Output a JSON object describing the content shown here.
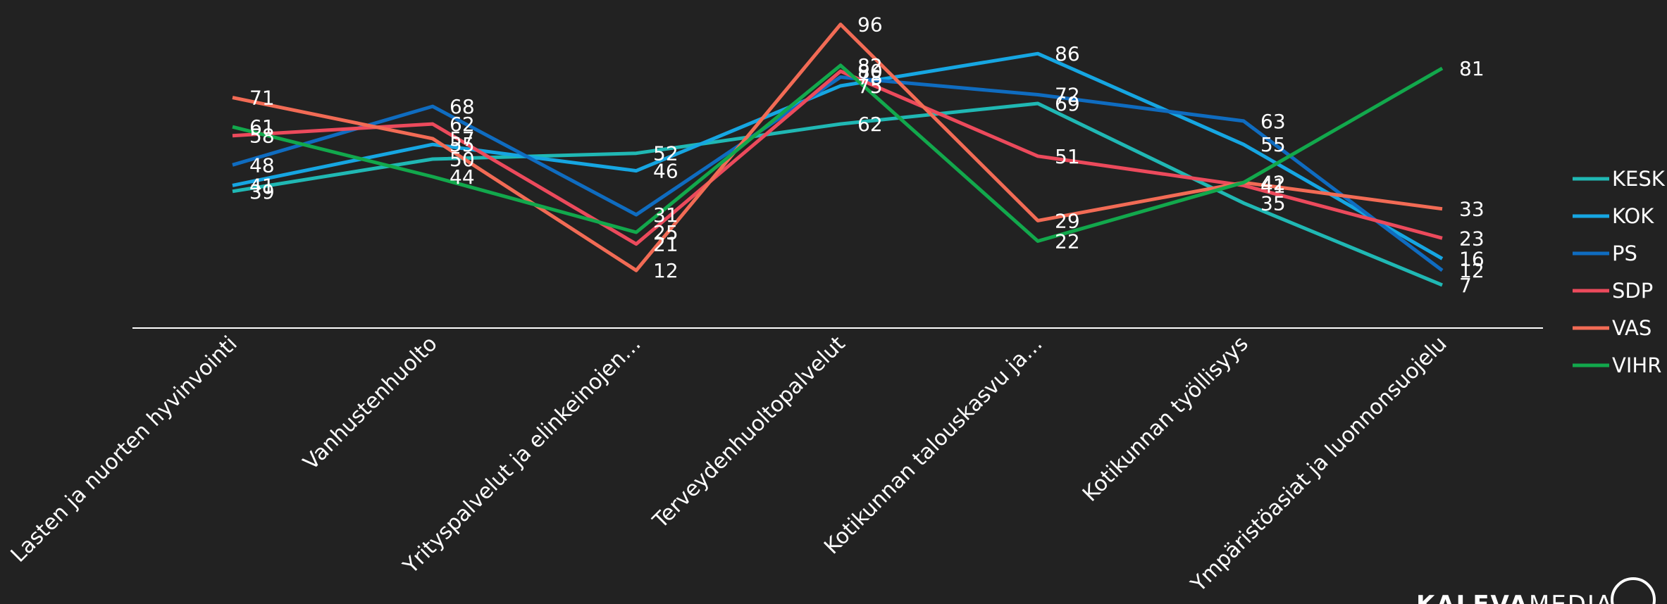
{
  "chart_data": {
    "type": "line",
    "categories": [
      "Lasten ja nuorten hyvinvointi",
      "Vanhustenhuolto",
      "Yrityspalvelut ja elinkeinojen…",
      "Terveydenhuoltopalvelut",
      "Kotikunnan talouskasvu ja…",
      "Kotikunnan työllisyys",
      "Ympäristöasiat ja luonnonsuojelu"
    ],
    "series": [
      {
        "name": "KESK",
        "color": "#20b8b4",
        "values": [
          39,
          50,
          52,
          62,
          69,
          35,
          7
        ]
      },
      {
        "name": "KOK",
        "color": "#16a6e2",
        "values": [
          41,
          55,
          46,
          75,
          86,
          55,
          16
        ]
      },
      {
        "name": "PS",
        "color": "#0f6cc0",
        "values": [
          48,
          68,
          31,
          78,
          72,
          63,
          12
        ]
      },
      {
        "name": "SDP",
        "color": "#ec4a5c",
        "values": [
          58,
          62,
          21,
          80,
          51,
          41,
          23
        ]
      },
      {
        "name": "VAS",
        "color": "#f26b55",
        "values": [
          71,
          57,
          12,
          96,
          29,
          42,
          33
        ]
      },
      {
        "name": "VIHR",
        "color": "#12a84c",
        "values": [
          61,
          44,
          25,
          82,
          22,
          42,
          81
        ]
      }
    ],
    "ylim": [
      0,
      100
    ],
    "grid": false,
    "legend": "right"
  },
  "logo": {
    "text_bold": "KALEVA",
    "text_light": "MEDIA"
  }
}
